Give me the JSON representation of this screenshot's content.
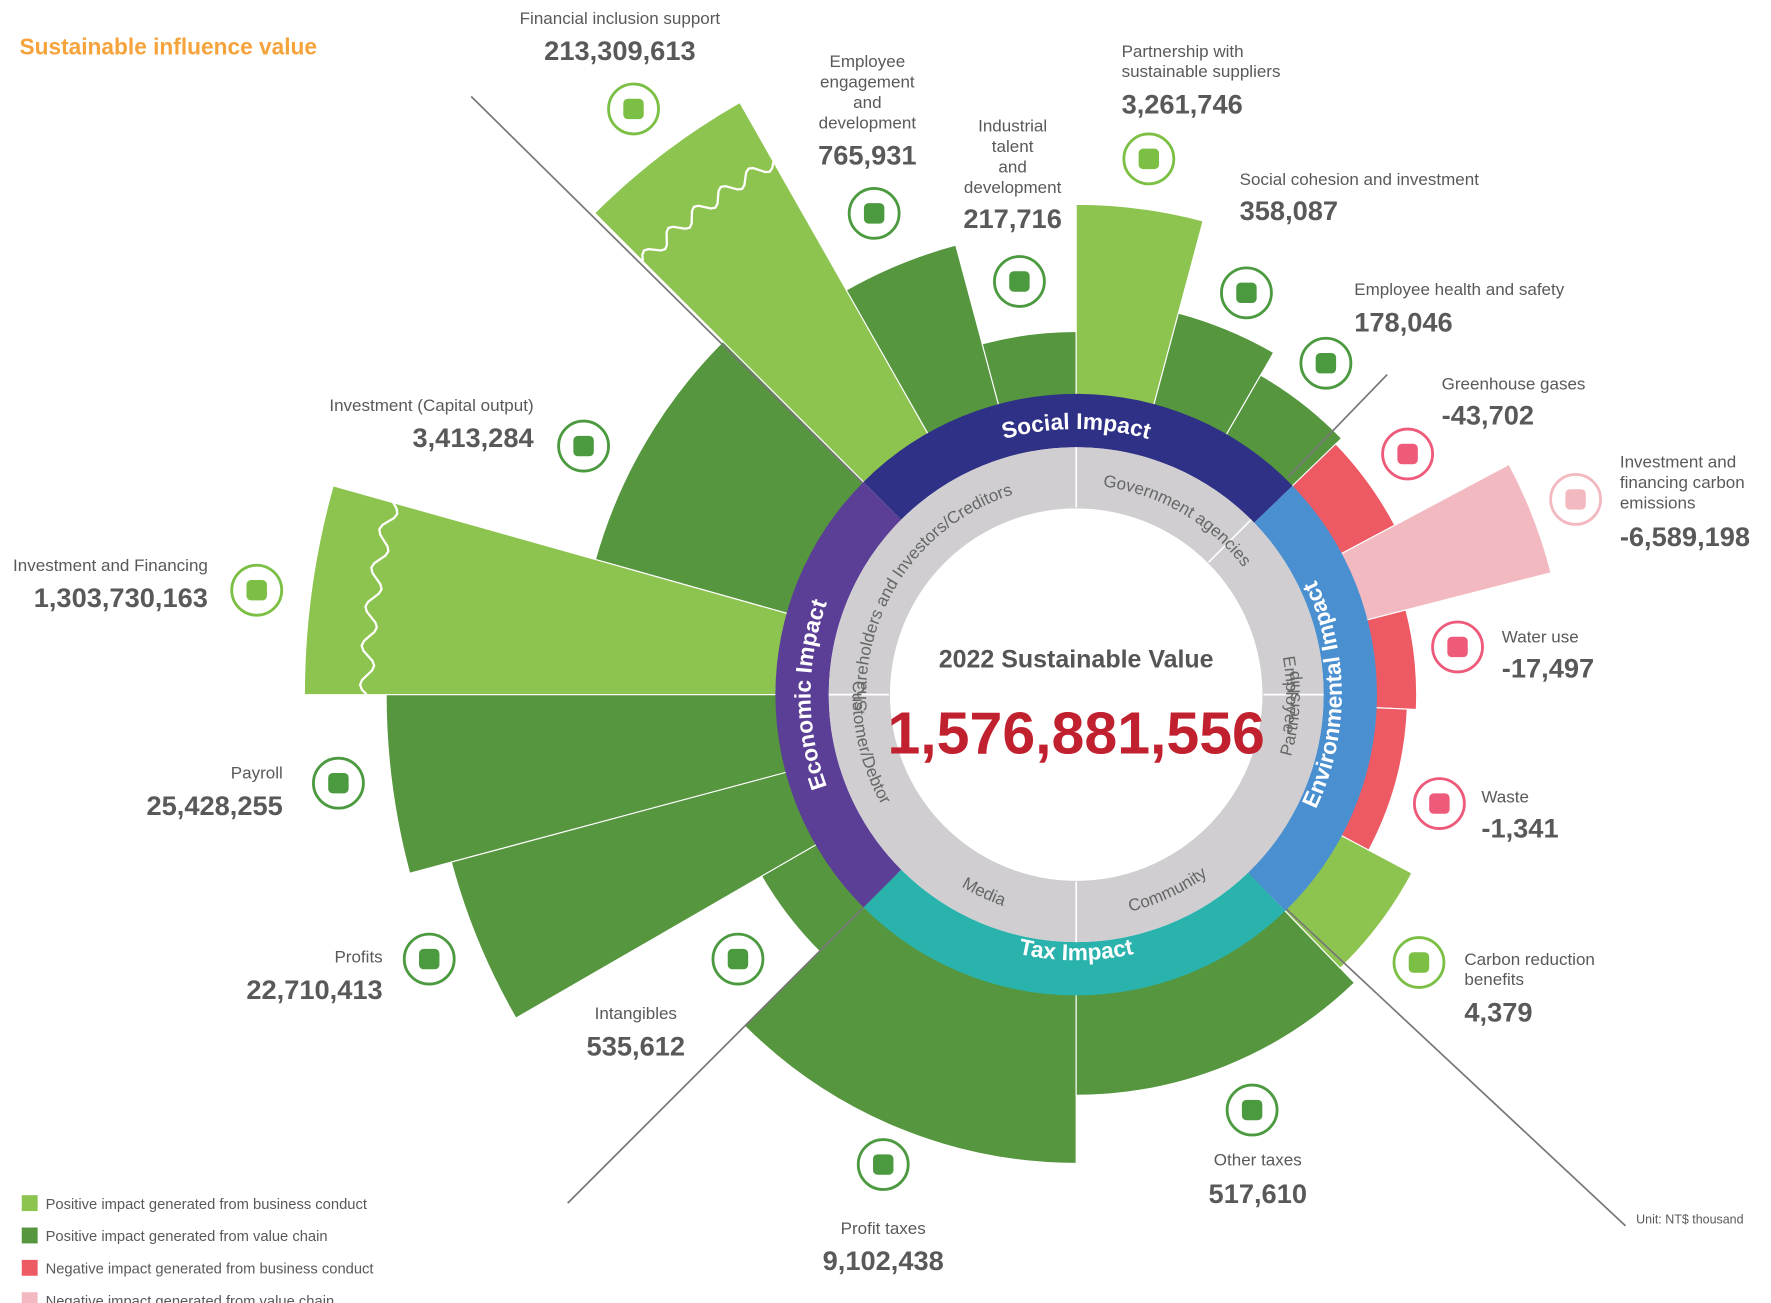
{
  "title": "Sustainable influence value",
  "center": {
    "label": "2022 Sustainable Value",
    "value": "1,576,881,556"
  },
  "impacts": [
    "Social Impact",
    "Environmental Impact",
    "Tax Impact",
    "Economic Impact"
  ],
  "stakeholders": [
    "Shareholders and Investors/Creditors",
    "Government agencies",
    "Employee",
    "Partnership",
    "Community",
    "Media",
    "Customer/Debtor"
  ],
  "items": [
    {
      "label": [
        "Financial inclusion support"
      ],
      "value": "213,309,613"
    },
    {
      "label": [
        "Employee",
        "engagement",
        "and",
        "development"
      ],
      "value": "765,931"
    },
    {
      "label": [
        "Industrial",
        "talent",
        "and",
        "development"
      ],
      "value": "217,716"
    },
    {
      "label": [
        "Partnership with",
        "sustainable suppliers"
      ],
      "value": "3,261,746"
    },
    {
      "label": [
        "Social cohesion and investment"
      ],
      "value": "358,087"
    },
    {
      "label": [
        "Employee health and safety"
      ],
      "value": "178,046"
    },
    {
      "label": [
        "Greenhouse gases"
      ],
      "value": "-43,702"
    },
    {
      "label": [
        "Investment and",
        "financing carbon",
        "emissions"
      ],
      "value": "-6,589,198"
    },
    {
      "label": [
        "Water use"
      ],
      "value": "-17,497"
    },
    {
      "label": [
        "Waste"
      ],
      "value": "-1,341"
    },
    {
      "label": [
        "Carbon reduction",
        "benefits"
      ],
      "value": "4,379"
    },
    {
      "label": [
        "Other taxes"
      ],
      "value": "517,610"
    },
    {
      "label": [
        "Profit taxes"
      ],
      "value": "9,102,438"
    },
    {
      "label": [
        "Intangibles"
      ],
      "value": "535,612"
    },
    {
      "label": [
        "Profits"
      ],
      "value": "22,710,413"
    },
    {
      "label": [
        "Payroll"
      ],
      "value": "25,428,255"
    },
    {
      "label": [
        "Investment and Financing"
      ],
      "value": "1,303,730,163"
    },
    {
      "label": [
        "Investment (Capital output)"
      ],
      "value": "3,413,284"
    }
  ],
  "legend": [
    {
      "label": "Positive impact generated from business conduct",
      "color": "#8dc450"
    },
    {
      "label": "Positive impact generated from value chain",
      "color": "#55963e"
    },
    {
      "label": "Negative impact generated from business conduct",
      "color": "#ee5a63"
    },
    {
      "label": "Negative impact generated from value chain",
      "color": "#f3b9c0"
    }
  ],
  "unit": "Unit: NT$ thousand"
}
